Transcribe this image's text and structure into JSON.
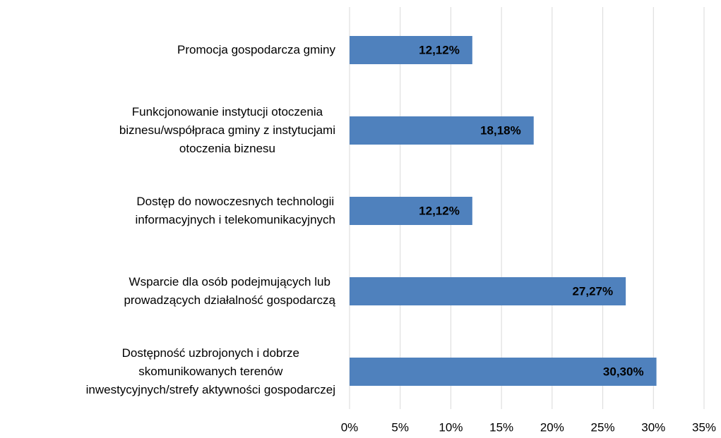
{
  "chart_data": {
    "type": "bar",
    "orientation": "horizontal",
    "categories": [
      "Promocja gospodarcza gminy",
      "Funkcjonowanie instytucji otoczenia\nbiznesu/współpraca gminy z instytucjami\notoczenia biznesu",
      "Dostęp do nowoczesnych technologii\ninformacyjnych i telekomunikacyjnych",
      "Wsparcie dla osób podejmujących lub\nprowadzących działalność gospodarczą",
      "Dostępność uzbrojonych i dobrze\nskomunikowanych terenów\ninwestycyjnych/strefy aktywności gospodarczej"
    ],
    "values": [
      12.12,
      18.18,
      12.12,
      27.27,
      30.3
    ],
    "value_labels": [
      "12,12%",
      "18,18%",
      "12,12%",
      "27,27%",
      "30,30%"
    ],
    "color": "#4f81bd",
    "xlim": [
      0,
      35
    ],
    "xticks": [
      {
        "value": 0,
        "label": "0%"
      },
      {
        "value": 5,
        "label": "5%"
      },
      {
        "value": 10,
        "label": "10%"
      },
      {
        "value": 15,
        "label": "15%"
      },
      {
        "value": 20,
        "label": "20%"
      },
      {
        "value": 25,
        "label": "25%"
      },
      {
        "value": 30,
        "label": "30%"
      },
      {
        "value": 35,
        "label": "35%"
      }
    ],
    "grid": true
  }
}
